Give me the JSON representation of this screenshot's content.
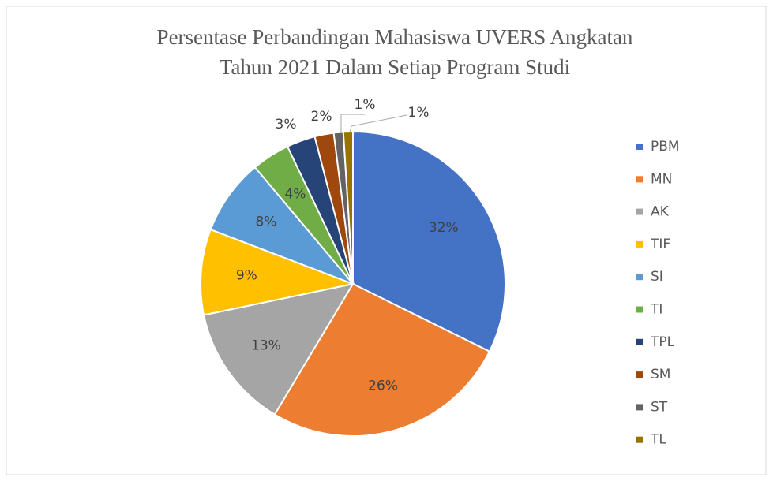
{
  "chart_data": {
    "type": "pie",
    "title": [
      "Persentase Perbandingan Mahasiswa UVERS Angkatan",
      "Tahun 2021 Dalam Setiap Program Studi"
    ],
    "categories": [
      "PBM",
      "MN",
      "AK",
      "TIF",
      "SI",
      "TI",
      "TPL",
      "SM",
      "ST",
      "TL"
    ],
    "values": [
      32,
      26,
      13,
      9,
      8,
      4,
      3,
      2,
      1,
      1
    ],
    "value_labels": [
      "32%",
      "26%",
      "13%",
      "9%",
      "8%",
      "4%",
      "3%",
      "2%",
      "1%",
      "1%"
    ],
    "colors": [
      "#4472c4",
      "#ed7d31",
      "#a5a5a5",
      "#ffc000",
      "#5b9bd5",
      "#70ad47",
      "#264478",
      "#9e480e",
      "#636363",
      "#997300"
    ],
    "legend": "right"
  }
}
